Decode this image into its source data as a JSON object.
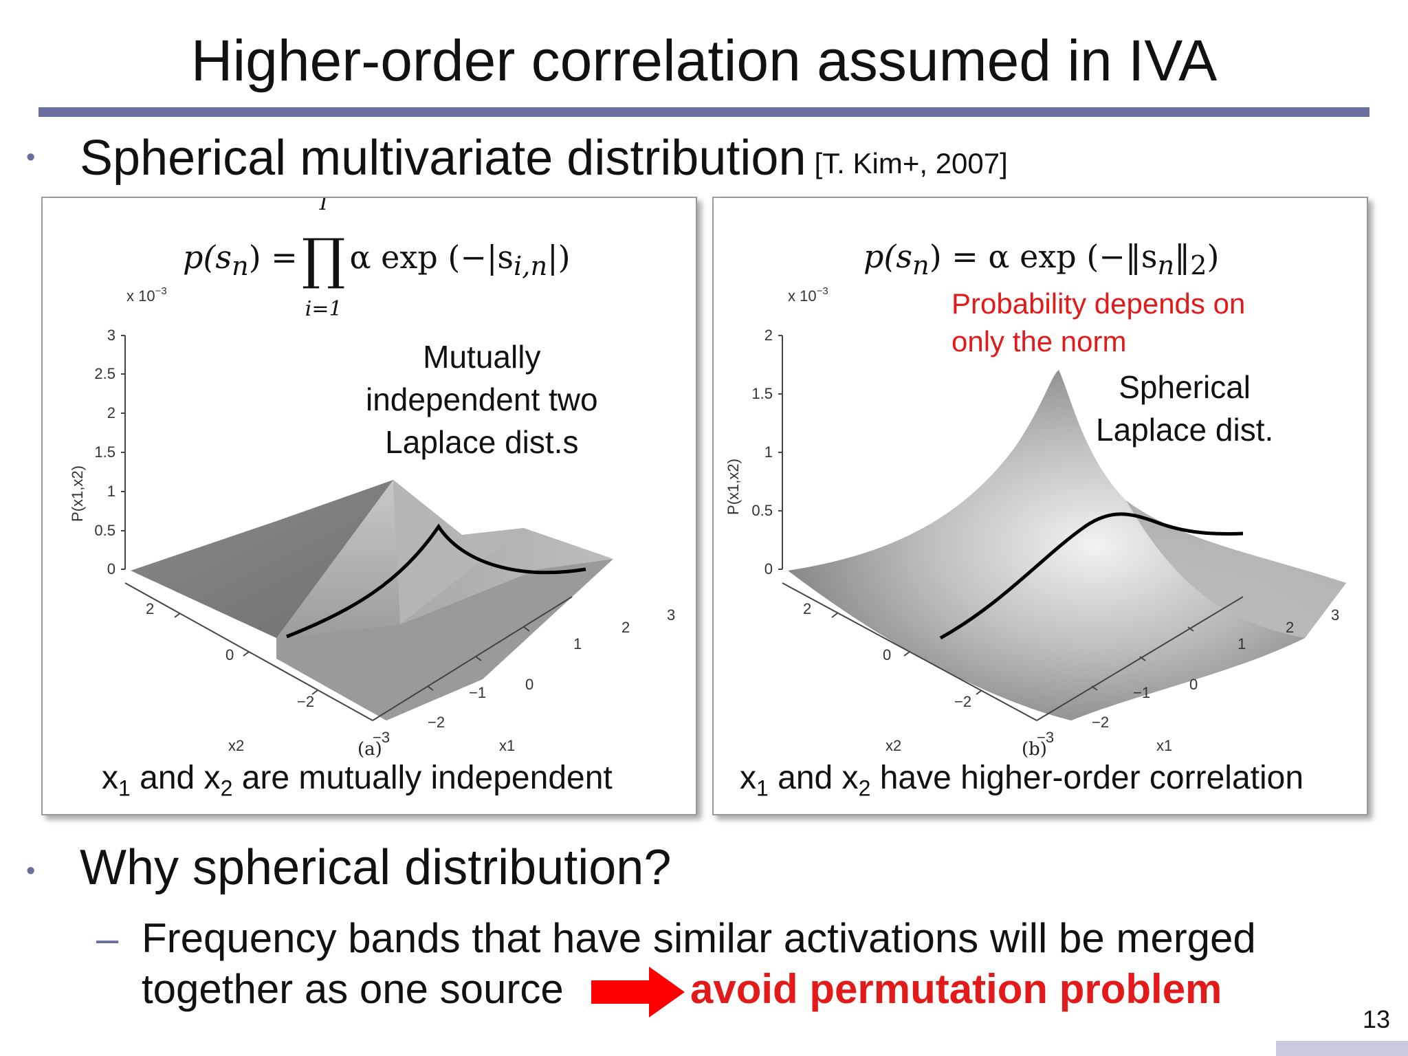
{
  "slide": {
    "title": "Higher-order correlation assumed in IVA",
    "page_number": "13",
    "accent_color": "#6b6e9c",
    "emphasis_color": "#e21a1a"
  },
  "bullets": [
    {
      "text": "Spherical multivariate distribution",
      "citation": "[T. Kim+, 2007]"
    },
    {
      "text": "Why spherical distribution?"
    }
  ],
  "sub_bullet": {
    "line1": "Frequency bands that have similar activations will be merged",
    "line2": "together as one source",
    "emphasis": "avoid permutation problem"
  },
  "panels": {
    "left": {
      "formula_lhs": "p(s",
      "formula_lhs_sub": "n",
      "formula_upper": "I",
      "formula_lower": "i=1",
      "formula_rhs": "α exp (−|s",
      "formula_rhs_sub": "i,n",
      "note": [
        "Mutually",
        "independent two",
        "Laplace dist.s"
      ],
      "scale_label": "x 10",
      "scale_exp": "−3",
      "z_ticks": [
        "3",
        "2.5",
        "2",
        "1.5",
        "1",
        "0.5",
        "0"
      ],
      "z_label": "P(x1,x2)",
      "x2_ticks": [
        "2",
        "0",
        "−2"
      ],
      "x1_ticks": [
        "−3",
        "−2",
        "−1",
        "0",
        "1",
        "2",
        "3"
      ],
      "x2_label": "x2",
      "x1_label": "x1",
      "figure_letter": "(a)",
      "caption_pre": "x",
      "caption_sub1": "1",
      "caption_mid": " and x",
      "caption_sub2": "2",
      "caption_post": " are mutually independent"
    },
    "right": {
      "formula_lhs": "p(s",
      "formula_lhs_sub": "n",
      "formula_rhs": ") = α exp (−‖s",
      "formula_rhs_sub": "n",
      "formula_end": "‖",
      "formula_end_sub": "2",
      "red_note": [
        "Probability depends on",
        "only the norm"
      ],
      "note": [
        "Spherical",
        "Laplace dist."
      ],
      "scale_label": "x 10",
      "scale_exp": "−3",
      "z_ticks": [
        "2",
        "1.5",
        "1",
        "0.5",
        "0"
      ],
      "z_label": "P(x1,x2)",
      "x2_ticks": [
        "2",
        "0",
        "−2"
      ],
      "x1_ticks": [
        "−3",
        "−2",
        "−1",
        "0",
        "1",
        "2",
        "3"
      ],
      "x2_label": "x2",
      "x1_label": "x1",
      "figure_letter": "(b)",
      "caption_pre": "x",
      "caption_sub1": "1",
      "caption_mid": " and x",
      "caption_sub2": "2",
      "caption_post": " have higher-order correlation"
    }
  }
}
